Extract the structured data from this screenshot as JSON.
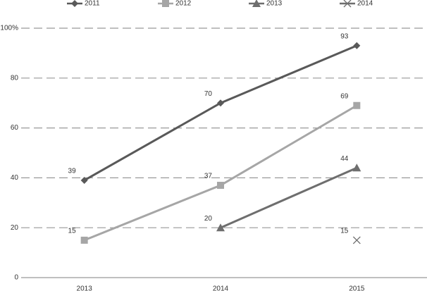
{
  "chart_data": {
    "type": "line",
    "categories": [
      "2013",
      "2014",
      "2015"
    ],
    "series": [
      {
        "name": "2011",
        "color": "#595959",
        "marker": "diamond",
        "values": [
          39,
          70,
          93
        ]
      },
      {
        "name": "2012",
        "color": "#a6a6a6",
        "marker": "square",
        "values": [
          15,
          37,
          69
        ]
      },
      {
        "name": "2013",
        "color": "#6e6e6e",
        "marker": "triangle",
        "values": [
          null,
          20,
          44
        ]
      },
      {
        "name": "2014",
        "color": "#6e6e6e",
        "marker": "x",
        "values": [
          null,
          null,
          15
        ]
      }
    ],
    "ylim": [
      0,
      100
    ],
    "yticks": [
      0,
      20,
      40,
      60,
      80,
      {
        "value": 100,
        "label": "100%"
      }
    ],
    "grid": true,
    "legend": "top"
  }
}
